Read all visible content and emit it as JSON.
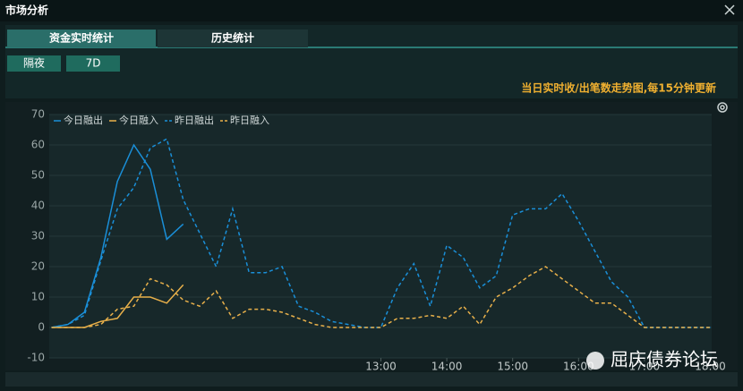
{
  "window": {
    "title": "市场分析"
  },
  "tabs": [
    "资金实时统计",
    "历史统计"
  ],
  "buttons": [
    "隔夜",
    "7D"
  ],
  "note": "当日实时收/出笔数走势图,每15分钟更新",
  "watermark": "屈庆债券论坛",
  "chart_data": {
    "type": "line",
    "categories": [
      null,
      null,
      null,
      null,
      null,
      null,
      null,
      null,
      null,
      null,
      null,
      null,
      null,
      null,
      null,
      null,
      null,
      null,
      null,
      null,
      "13:00",
      null,
      null,
      null,
      "14:00",
      null,
      null,
      null,
      "15:00",
      null,
      null,
      null,
      "16:00",
      null,
      null,
      null,
      "17:00",
      null,
      null,
      null,
      "18:00"
    ],
    "series": [
      {
        "name": "今日融出",
        "color": "#1a8fd8",
        "dash": false,
        "values": [
          0,
          1,
          5,
          23,
          48,
          60,
          52,
          29,
          34,
          null,
          null,
          null,
          null,
          null,
          null,
          null,
          null,
          null,
          null,
          null,
          null,
          null,
          null,
          null,
          null,
          null,
          null,
          null,
          null,
          null,
          null,
          null,
          null,
          null,
          null,
          null,
          null,
          null,
          null,
          null,
          null
        ]
      },
      {
        "name": "今日融入",
        "color": "#e8b04a",
        "dash": false,
        "values": [
          0,
          0,
          0,
          2,
          3,
          10,
          10,
          8,
          14,
          null,
          null,
          null,
          null,
          null,
          null,
          null,
          null,
          null,
          null,
          null,
          null,
          null,
          null,
          null,
          null,
          null,
          null,
          null,
          null,
          null,
          null,
          null,
          null,
          null,
          null,
          null,
          null,
          null,
          null,
          null,
          null
        ]
      },
      {
        "name": "昨日融出",
        "color": "#1a8fd8",
        "dash": true,
        "values": [
          0,
          1,
          4,
          22,
          39,
          46,
          59,
          62,
          42,
          31,
          20,
          39,
          18,
          18,
          20,
          7,
          5,
          2,
          1,
          0,
          0,
          13,
          21,
          7,
          27,
          23,
          13,
          17,
          37,
          39,
          39,
          44,
          35,
          25,
          15,
          10,
          0,
          0,
          0,
          0,
          0
        ]
      },
      {
        "name": "昨日融入",
        "color": "#e8b04a",
        "dash": true,
        "values": [
          0,
          0,
          0,
          1,
          6,
          7,
          16,
          14,
          9,
          7,
          12,
          3,
          6,
          6,
          5,
          3,
          1,
          0,
          0,
          0,
          0,
          3,
          3,
          4,
          3,
          7,
          1,
          10,
          13,
          17,
          20,
          16,
          12,
          8,
          8,
          4,
          0,
          0,
          0,
          0,
          0
        ]
      }
    ],
    "ylim": [
      -10,
      70
    ],
    "yticks": [
      -10,
      0,
      10,
      20,
      30,
      40,
      50,
      60,
      70
    ],
    "grid": true
  }
}
